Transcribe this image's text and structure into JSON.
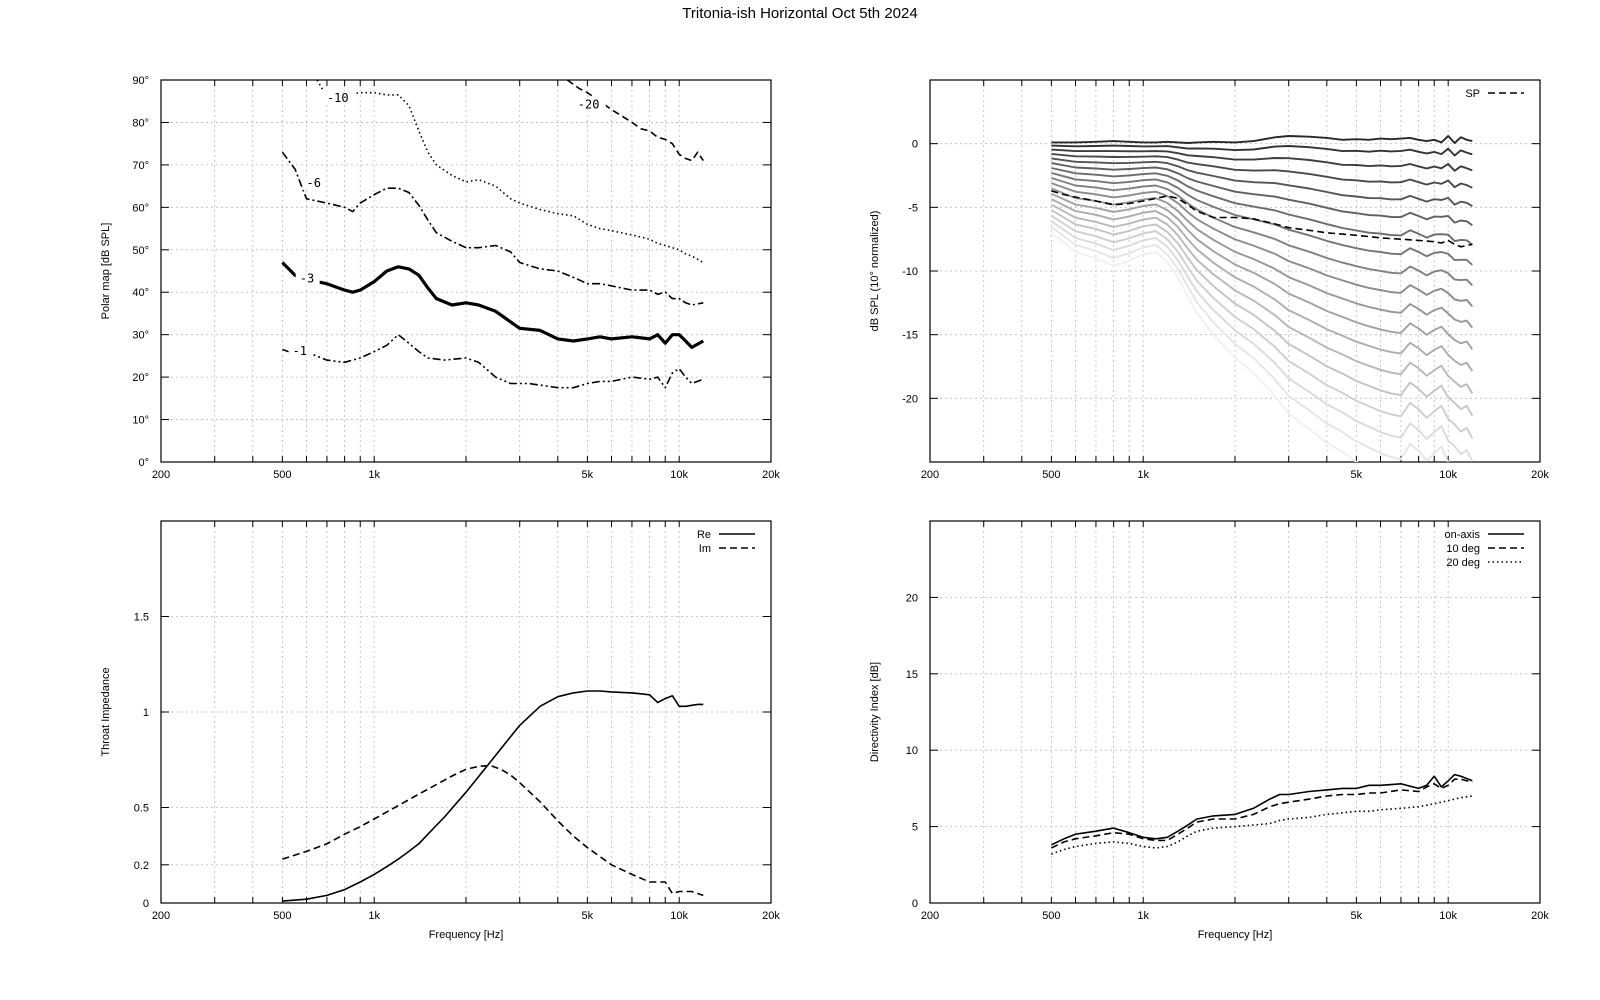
{
  "title": "Tritonia-ish Horizontal Oct 5th 2024",
  "chart_data": [
    {
      "id": "polar",
      "type": "line",
      "xscale": "log",
      "xlim": [
        200,
        20000
      ],
      "ylim": [
        0,
        90
      ],
      "xticks": [
        200,
        500,
        1000,
        5000,
        10000,
        20000
      ],
      "xtick_labels": [
        "200",
        "500",
        "1k",
        "5k",
        "10k",
        "20k"
      ],
      "yticks": [
        0,
        10,
        20,
        30,
        40,
        50,
        60,
        70,
        80,
        90
      ],
      "ytick_labels": [
        "0°",
        "10°",
        "20°",
        "30°",
        "40°",
        "50°",
        "60°",
        "70°",
        "80°",
        "90°"
      ],
      "ylabel": "Polar map [dB SPL]",
      "xlabel": "",
      "grid": true,
      "series": [
        {
          "name": "-1",
          "style": "dashdotdot",
          "label_at": [
            540,
            25.5
          ],
          "x": [
            500,
            550,
            620,
            700,
            800,
            900,
            1000,
            1100,
            1200,
            1300,
            1400,
            1500,
            1700,
            2000,
            2200,
            2500,
            2800,
            3200,
            3600,
            4000,
            4500,
            5000,
            5500,
            6000,
            7000,
            8000,
            8500,
            9000,
            9500,
            10000,
            10500,
            11000,
            12000
          ],
          "y": [
            26.5,
            25.5,
            25.5,
            24,
            23.5,
            24.5,
            26,
            27.5,
            30,
            28,
            26,
            24.5,
            24,
            24.5,
            23.5,
            20,
            18.5,
            18.5,
            18,
            17.5,
            17.5,
            18.5,
            19,
            19,
            20,
            19.5,
            20,
            17.5,
            21,
            22,
            20,
            18.5,
            19.5
          ]
        },
        {
          "name": "-3",
          "style": "solid-thick",
          "label_at": [
            570,
            42.5
          ],
          "x": [
            500,
            550,
            600,
            700,
            800,
            850,
            900,
            1000,
            1100,
            1200,
            1300,
            1400,
            1500,
            1600,
            1800,
            2000,
            2200,
            2500,
            2800,
            3000,
            3500,
            4000,
            4500,
            5000,
            5500,
            6000,
            7000,
            8000,
            8500,
            9000,
            9500,
            10000,
            10500,
            11000,
            12000
          ],
          "y": [
            47,
            44,
            43,
            42,
            40.5,
            40,
            40.5,
            42.5,
            45,
            46,
            45.5,
            44,
            41,
            38.5,
            37,
            37.5,
            37,
            35.5,
            33,
            31.5,
            31,
            29,
            28.5,
            29,
            29.5,
            29,
            29.5,
            29,
            30,
            28,
            30,
            30,
            28.5,
            27,
            28.5
          ]
        },
        {
          "name": "-6",
          "style": "dashdot",
          "label_at": [
            600,
            65
          ],
          "x": [
            500,
            550,
            600,
            700,
            800,
            850,
            900,
            1000,
            1100,
            1200,
            1300,
            1400,
            1500,
            1600,
            1800,
            2000,
            2200,
            2500,
            2800,
            3000,
            3500,
            4000,
            4500,
            5000,
            5500,
            6000,
            7000,
            8000,
            8500,
            9000,
            9500,
            10000,
            10500,
            11000,
            12000
          ],
          "y": [
            73,
            69,
            62,
            61,
            60,
            59,
            61,
            63,
            64.5,
            64.5,
            63.5,
            60.5,
            57,
            54,
            52,
            50.5,
            50.5,
            51,
            49.5,
            47,
            45.5,
            45,
            43.5,
            42,
            42,
            41.5,
            40.5,
            40.5,
            39.5,
            40,
            38.5,
            38.5,
            37.5,
            37,
            37.5
          ]
        },
        {
          "name": "-10",
          "style": "dotted",
          "label_at": [
            700,
            85
          ],
          "x": [
            650,
            700,
            800,
            900,
            1000,
            1100,
            1200,
            1300,
            1400,
            1500,
            1600,
            1800,
            2000,
            2200,
            2500,
            2800,
            3000,
            3500,
            4000,
            4500,
            5000,
            5500,
            6000,
            7000,
            8000,
            8500,
            9000,
            9500,
            10000,
            10500,
            11000,
            12000
          ],
          "y": [
            90,
            86,
            86.5,
            87,
            87,
            86.5,
            86.5,
            84,
            78,
            73,
            70,
            67.5,
            66,
            66.5,
            65,
            62,
            61,
            59.5,
            58.5,
            58,
            56,
            55,
            54.5,
            53.5,
            52.5,
            51.5,
            51,
            50.5,
            50,
            49,
            48.5,
            47
          ]
        },
        {
          "name": "-20",
          "style": "dashed",
          "label_at": [
            4650,
            83.5
          ],
          "x": [
            4300,
            4700,
            5000,
            5500,
            6000,
            6500,
            7000,
            7500,
            8000,
            8500,
            9000,
            9500,
            10000,
            10500,
            11000,
            11500,
            12000
          ],
          "y": [
            90,
            88,
            87,
            85,
            83,
            81.5,
            80,
            78.5,
            78,
            76.5,
            76,
            75,
            72.5,
            71.5,
            71,
            73,
            71
          ]
        }
      ]
    },
    {
      "id": "spl",
      "type": "line",
      "xscale": "log",
      "xlim": [
        200,
        20000
      ],
      "ylim": [
        -25,
        5
      ],
      "xticks": [
        200,
        500,
        1000,
        5000,
        10000,
        20000
      ],
      "xtick_labels": [
        "200",
        "500",
        "1k",
        "5k",
        "10k",
        "20k"
      ],
      "yticks": [
        0,
        -5,
        -10,
        -15,
        -20
      ],
      "ytick_labels": [
        "0",
        "-5",
        "-10",
        "-15",
        "-20"
      ],
      "ylabel": "dB SPL (10° normalized)",
      "xlabel": "",
      "grid": true,
      "legend": {
        "position": "top-right",
        "entries": [
          {
            "label": "SP",
            "style": "dashed"
          }
        ]
      },
      "family": {
        "count": 19,
        "x": [
          500,
          600,
          700,
          800,
          900,
          1000,
          1100,
          1200,
          1300,
          1400,
          1500,
          1700,
          2000,
          2300,
          2700,
          3000,
          3500,
          4000,
          4500,
          5000,
          5500,
          6000,
          6500,
          7000,
          7500,
          8000,
          8500,
          9000,
          9500,
          10000,
          10500,
          11000,
          11500,
          12000
        ],
        "first": [
          0.1,
          0.1,
          0.15,
          0.2,
          0.15,
          0.1,
          0.1,
          0.15,
          0.1,
          0.05,
          0.1,
          0.15,
          0.1,
          0.2,
          0.5,
          0.6,
          0.55,
          0.45,
          0.3,
          0.35,
          0.3,
          0.4,
          0.35,
          0.4,
          0.45,
          0.3,
          0.2,
          0.3,
          0.1,
          0.6,
          0.05,
          0.5,
          0.3,
          0.2
        ],
        "last_end": [
          -7.0,
          -8.5,
          -9.0,
          -9.6,
          -9.2,
          -8.7,
          -8.5,
          -9.3,
          -10.5,
          -12.0,
          -13.3,
          -15.0,
          -16.8,
          -18.0,
          -19.8,
          -21.2,
          -22.4,
          -23.5,
          -24.2,
          -25.0,
          -25.5,
          -26.0,
          -26.3,
          -26.5,
          -25.2,
          -25.8,
          -26.6,
          -26.0,
          -25.4,
          -26.8,
          -27.2,
          -28.0,
          -27.6,
          -28.6
        ]
      },
      "series": [
        {
          "name": "SP",
          "style": "dashed",
          "x": [
            500,
            550,
            600,
            700,
            800,
            900,
            1000,
            1100,
            1200,
            1300,
            1400,
            1500,
            1700,
            2000,
            2300,
            2700,
            3000,
            3500,
            4000,
            4500,
            5000,
            5500,
            6000,
            7000,
            8000,
            9000,
            9500,
            10000,
            10500,
            11000,
            12000
          ],
          "y": [
            -3.7,
            -4.0,
            -4.2,
            -4.5,
            -4.8,
            -4.7,
            -4.5,
            -4.3,
            -4.1,
            -4.3,
            -4.8,
            -5.3,
            -5.8,
            -5.8,
            -5.9,
            -6.3,
            -6.6,
            -6.8,
            -7.0,
            -7.1,
            -7.2,
            -7.3,
            -7.4,
            -7.5,
            -7.6,
            -7.7,
            -7.8,
            -7.6,
            -7.9,
            -8.1,
            -7.9
          ]
        }
      ]
    },
    {
      "id": "impedance",
      "type": "line",
      "xscale": "log",
      "xlim": [
        200,
        20000
      ],
      "ylim": [
        0,
        2
      ],
      "xticks": [
        200,
        500,
        1000,
        5000,
        10000,
        20000
      ],
      "xtick_labels": [
        "200",
        "500",
        "1k",
        "5k",
        "10k",
        "20k"
      ],
      "yticks": [
        0,
        0.2,
        0.5,
        1,
        1.5
      ],
      "ytick_labels": [
        "0",
        "0.2",
        "0.5",
        "1",
        "1.5"
      ],
      "ylabel": "Throat Impedance",
      "xlabel": "Frequency [Hz]",
      "grid": true,
      "legend": {
        "position": "top-right",
        "entries": [
          {
            "label": "Re",
            "style": "solid"
          },
          {
            "label": "Im",
            "style": "dashed"
          }
        ]
      },
      "series": [
        {
          "name": "Re",
          "style": "solid",
          "x": [
            500,
            600,
            700,
            800,
            900,
            1000,
            1100,
            1200,
            1300,
            1400,
            1500,
            1700,
            2000,
            2300,
            2700,
            3000,
            3500,
            4000,
            4500,
            5000,
            5500,
            6000,
            7000,
            8000,
            8500,
            9000,
            9500,
            10000,
            10500,
            11000,
            11500,
            12000
          ],
          "y": [
            0.01,
            0.02,
            0.04,
            0.07,
            0.11,
            0.15,
            0.19,
            0.23,
            0.27,
            0.31,
            0.36,
            0.45,
            0.58,
            0.7,
            0.84,
            0.93,
            1.03,
            1.08,
            1.1,
            1.11,
            1.11,
            1.105,
            1.1,
            1.09,
            1.05,
            1.07,
            1.085,
            1.03,
            1.03,
            1.035,
            1.04,
            1.04
          ]
        },
        {
          "name": "Im",
          "style": "dashed",
          "x": [
            500,
            600,
            700,
            800,
            900,
            1000,
            1200,
            1400,
            1600,
            1800,
            2000,
            2200,
            2400,
            2600,
            2800,
            3000,
            3500,
            4000,
            4500,
            5000,
            6000,
            7000,
            8000,
            9000,
            9500,
            10000,
            11000,
            12000
          ],
          "y": [
            0.23,
            0.27,
            0.31,
            0.36,
            0.4,
            0.44,
            0.51,
            0.57,
            0.62,
            0.665,
            0.7,
            0.715,
            0.72,
            0.7,
            0.67,
            0.63,
            0.53,
            0.43,
            0.35,
            0.29,
            0.2,
            0.15,
            0.11,
            0.11,
            0.05,
            0.06,
            0.06,
            0.04
          ]
        }
      ]
    },
    {
      "id": "directivity",
      "type": "line",
      "xscale": "log",
      "xlim": [
        200,
        20000
      ],
      "ylim": [
        0,
        25
      ],
      "xticks": [
        200,
        500,
        1000,
        5000,
        10000,
        20000
      ],
      "xtick_labels": [
        "200",
        "500",
        "1k",
        "5k",
        "10k",
        "20k"
      ],
      "yticks": [
        0,
        5,
        10,
        15,
        20
      ],
      "ytick_labels": [
        "0",
        "5",
        "10",
        "15",
        "20"
      ],
      "ylabel": "Directivity Index [dB]",
      "xlabel": "Frequency [Hz]",
      "grid": true,
      "legend": {
        "position": "top-right",
        "entries": [
          {
            "label": "on-axis",
            "style": "solid"
          },
          {
            "label": "10 deg",
            "style": "dashed"
          },
          {
            "label": "20 deg",
            "style": "dotted"
          }
        ]
      },
      "series": [
        {
          "name": "on-axis",
          "style": "solid",
          "x": [
            500,
            550,
            600,
            700,
            800,
            900,
            1000,
            1100,
            1200,
            1300,
            1400,
            1500,
            1700,
            2000,
            2300,
            2600,
            2800,
            3000,
            3500,
            4000,
            4500,
            5000,
            5500,
            6000,
            7000,
            8000,
            8500,
            9000,
            9500,
            10000,
            10500,
            11000,
            12000
          ],
          "y": [
            3.8,
            4.2,
            4.5,
            4.7,
            4.9,
            4.6,
            4.3,
            4.2,
            4.3,
            4.7,
            5.1,
            5.5,
            5.7,
            5.8,
            6.2,
            6.8,
            7.1,
            7.1,
            7.3,
            7.4,
            7.5,
            7.5,
            7.7,
            7.7,
            7.8,
            7.5,
            7.7,
            8.3,
            7.6,
            8.0,
            8.4,
            8.3,
            8.0
          ]
        },
        {
          "name": "10 deg",
          "style": "dashed",
          "x": [
            500,
            550,
            600,
            700,
            800,
            900,
            1000,
            1100,
            1200,
            1300,
            1400,
            1500,
            1700,
            2000,
            2300,
            2600,
            2800,
            3000,
            3500,
            4000,
            4500,
            5000,
            5500,
            6000,
            7000,
            8000,
            8500,
            9000,
            9500,
            10000,
            10500,
            11000,
            12000
          ],
          "y": [
            3.6,
            4.0,
            4.2,
            4.4,
            4.6,
            4.5,
            4.2,
            4.1,
            4.1,
            4.5,
            4.9,
            5.3,
            5.5,
            5.5,
            5.8,
            6.3,
            6.5,
            6.6,
            6.8,
            7.0,
            7.1,
            7.1,
            7.2,
            7.2,
            7.4,
            7.3,
            7.6,
            7.8,
            7.5,
            7.7,
            8.1,
            8.1,
            7.9
          ]
        },
        {
          "name": "20 deg",
          "style": "dotted",
          "x": [
            500,
            550,
            600,
            700,
            800,
            900,
            1000,
            1100,
            1200,
            1300,
            1400,
            1500,
            1700,
            2000,
            2300,
            2600,
            2800,
            3000,
            3500,
            4000,
            4500,
            5000,
            5500,
            6000,
            7000,
            8000,
            8500,
            9000,
            9500,
            10000,
            10500,
            11000,
            12000
          ],
          "y": [
            3.2,
            3.5,
            3.7,
            3.9,
            4.0,
            3.9,
            3.7,
            3.6,
            3.7,
            4.0,
            4.4,
            4.7,
            4.9,
            5.0,
            5.1,
            5.2,
            5.4,
            5.5,
            5.6,
            5.8,
            5.9,
            6.0,
            6.0,
            6.1,
            6.2,
            6.3,
            6.4,
            6.5,
            6.6,
            6.7,
            6.8,
            6.9,
            7.0
          ]
        }
      ]
    }
  ]
}
